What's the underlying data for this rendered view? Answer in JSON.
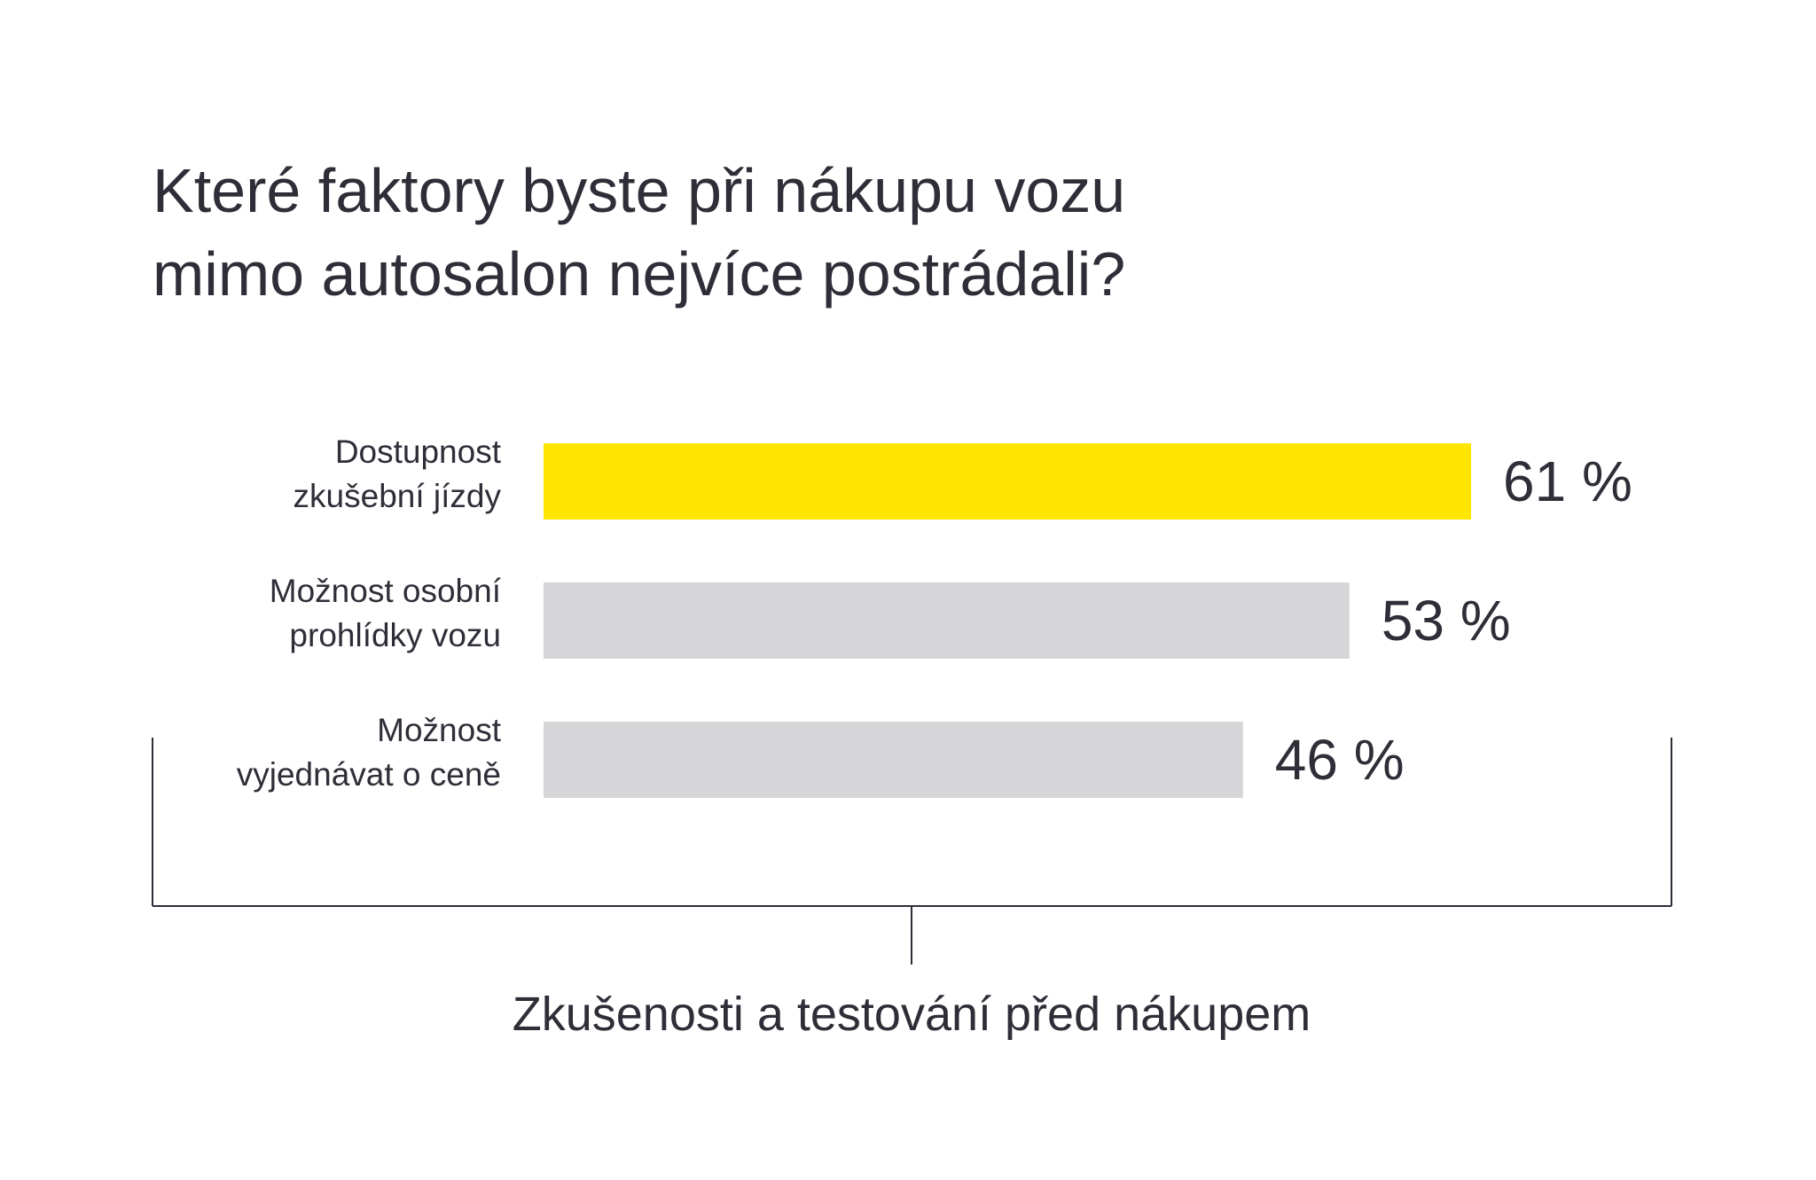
{
  "title_lines": [
    "Které faktory byste při nákupu vozu",
    "mimo autosalon nejvíce postrádali?"
  ],
  "chart_data": {
    "type": "bar",
    "orientation": "horizontal",
    "title": "Které faktory byste při nákupu vozu mimo autosalon nejvíce postrádali?",
    "categories": [
      [
        "Dostupnost",
        "zkušební jízdy"
      ],
      [
        "Možnost osobní",
        "prohlídky vozu"
      ],
      [
        "Možnost",
        "vyjednávat o ceně"
      ]
    ],
    "values": [
      61,
      53,
      46
    ],
    "value_labels": [
      "61 %",
      "53 %",
      "46 %"
    ],
    "unit": "%",
    "bar_colors": [
      "#ffe600",
      "#d6d6d8",
      "#d6d6d8"
    ],
    "group_label": "Zkušenosti a testování před nákupem",
    "grid": false,
    "legend": "none"
  },
  "colors": {
    "text": "#2e2e38",
    "highlight_bar": "#ffe600",
    "bar": "#d6d6d8",
    "bracket": "#2e2e38"
  }
}
